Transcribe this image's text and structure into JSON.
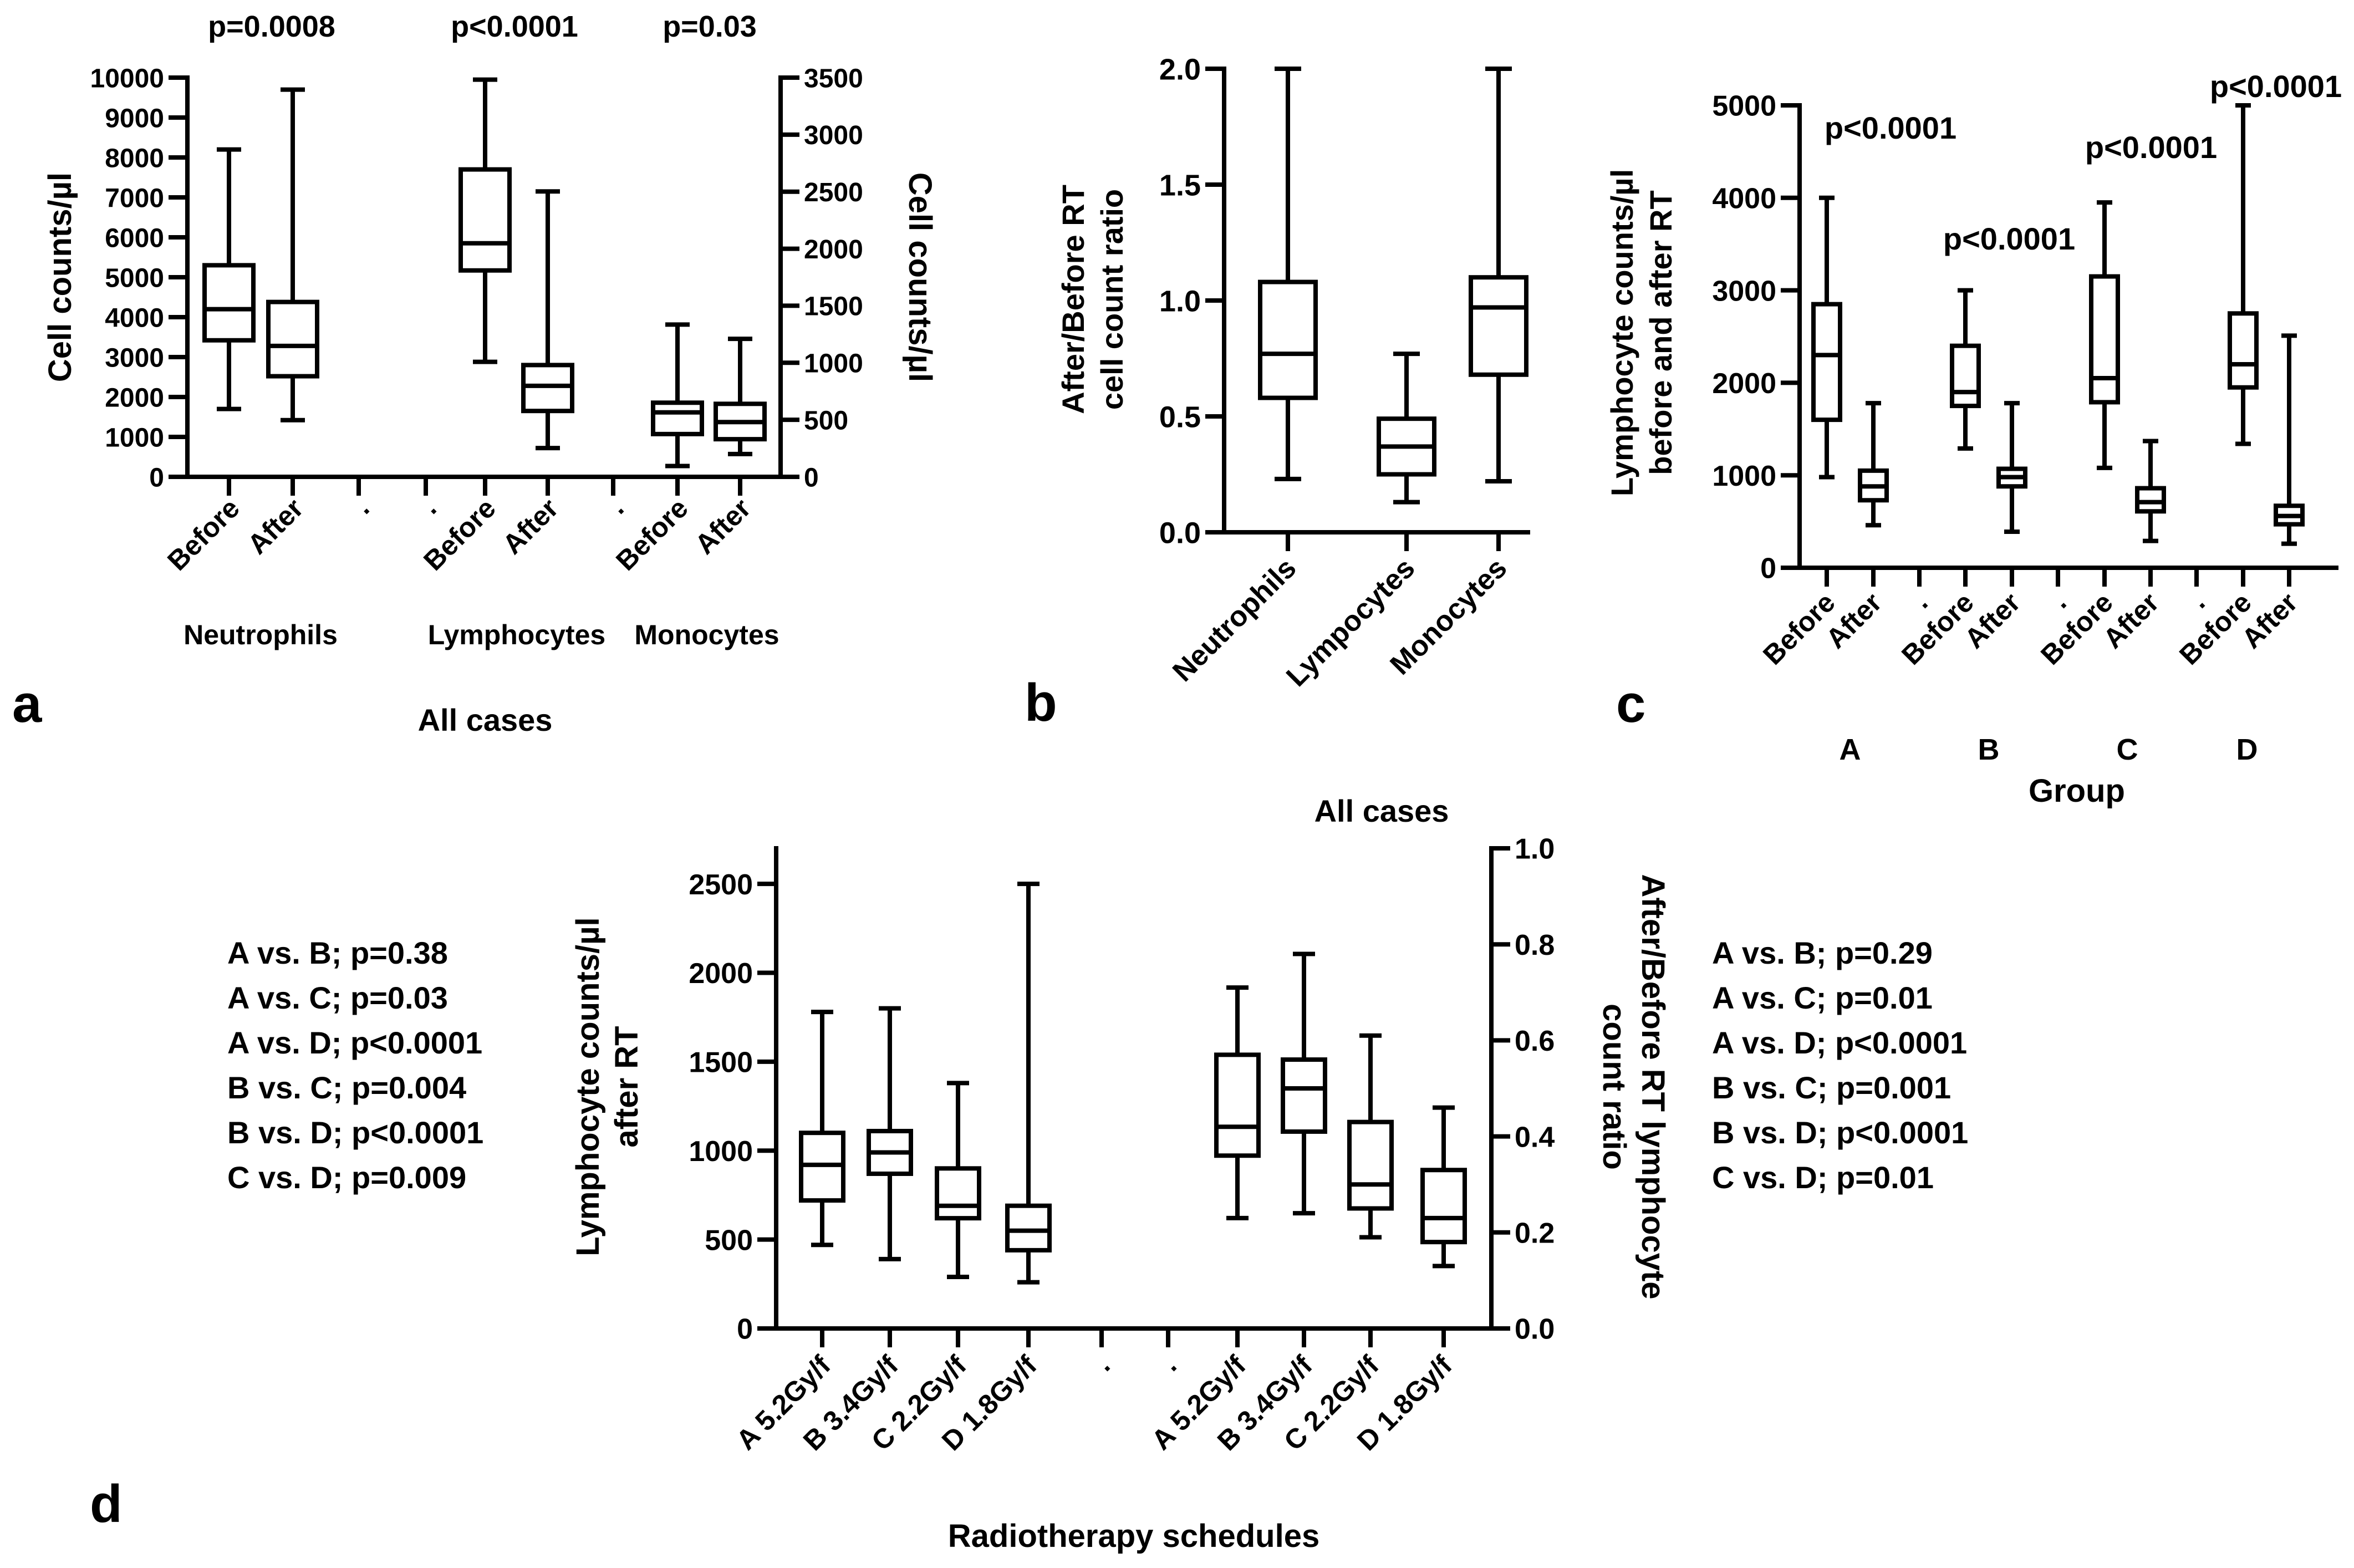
{
  "chart_data": [
    {
      "id": "a",
      "type": "box",
      "panel_label": "a",
      "title": "",
      "xlabel": "All cases",
      "ylabel": "Cell counts/µl",
      "ylabel_right": "Cell counts/µl",
      "ylim": [
        0,
        10000
      ],
      "ylim_right": [
        0,
        3500
      ],
      "yticks": [
        0,
        1000,
        2000,
        3000,
        4000,
        5000,
        6000,
        7000,
        8000,
        9000,
        10000
      ],
      "yticks_right": [
        0,
        500,
        1000,
        1500,
        2000,
        2500,
        3000,
        3500
      ],
      "tick_labels": [
        "Before",
        "After",
        ".",
        ".",
        "Before",
        "After",
        ".",
        "Before",
        "After"
      ],
      "group_labels": [
        "Neutrophils",
        "Lymphocytes",
        "Monocytes"
      ],
      "p_values": [
        "p=0.0008",
        "p<0.0001",
        "p=0.03"
      ],
      "boxes": [
        {
          "name": "Neutrophils Before",
          "min": 1700,
          "q1": 3420,
          "median": 4200,
          "q3": 5300,
          "max": 8200
        },
        {
          "name": "Neutrophils After",
          "min": 1420,
          "q1": 2520,
          "median": 3280,
          "q3": 4380,
          "max": 9700
        },
        {
          "name": "Lymphocytes Before",
          "min": 2880,
          "q1": 5170,
          "median": 5850,
          "q3": 7700,
          "max": 9950
        },
        {
          "name": "Lymphocytes After",
          "min": 720,
          "q1": 1650,
          "median": 2280,
          "q3": 2800,
          "max": 7150
        },
        {
          "name": "Monocytes Before",
          "min": 95,
          "q1": 375,
          "median": 565,
          "q3": 650,
          "max": 1335
        },
        {
          "name": "Monocytes After",
          "min": 200,
          "q1": 330,
          "median": 480,
          "q3": 640,
          "max": 1210
        }
      ]
    },
    {
      "id": "b",
      "type": "box",
      "panel_label": "b",
      "title": "",
      "xlabel": "All cases",
      "ylabel": "After/Before RT cell count ratio",
      "ylabel_lines": [
        "After/Before RT",
        "cell count ratio"
      ],
      "ylim": [
        0,
        2.0
      ],
      "yticks": [
        "0.0",
        "0.5",
        "1.0",
        "1.5",
        "2.0"
      ],
      "tick_labels": [
        "Neutrophils",
        "Lympocytes",
        "Monocytes"
      ],
      "boxes": [
        {
          "name": "Neutrophils",
          "min": 0.23,
          "q1": 0.58,
          "median": 0.77,
          "q3": 1.08,
          "max": 2.0
        },
        {
          "name": "Lympocytes",
          "min": 0.13,
          "q1": 0.25,
          "median": 0.37,
          "q3": 0.49,
          "max": 0.77
        },
        {
          "name": "Monocytes",
          "min": 0.22,
          "q1": 0.68,
          "median": 0.97,
          "q3": 1.1,
          "max": 2.0
        }
      ]
    },
    {
      "id": "c",
      "type": "box",
      "panel_label": "c",
      "title": "",
      "xlabel": "Group",
      "ylabel": "Lymphocyte counts/µl before and after RT",
      "ylabel_lines": [
        "Lymphocyte counts/µl",
        "before and after RT"
      ],
      "ylim": [
        0,
        5000
      ],
      "yticks": [
        0,
        1000,
        2000,
        3000,
        4000,
        5000
      ],
      "tick_labels": [
        "Before",
        "After",
        ".",
        "Before",
        "After",
        ".",
        "Before",
        "After",
        ".",
        "Before",
        "After"
      ],
      "group_labels": [
        "A",
        "B",
        "C",
        "D"
      ],
      "p_values": [
        "p<0.0001",
        "p<0.0001",
        "p<0.0001",
        "p<0.0001"
      ],
      "boxes": [
        {
          "name": "A Before",
          "min": 980,
          "q1": 1600,
          "median": 2300,
          "q3": 2850,
          "max": 4000
        },
        {
          "name": "A After",
          "min": 460,
          "q1": 730,
          "median": 880,
          "q3": 1050,
          "max": 1780
        },
        {
          "name": "B Before",
          "min": 1290,
          "q1": 1750,
          "median": 1900,
          "q3": 2400,
          "max": 3000
        },
        {
          "name": "B After",
          "min": 390,
          "q1": 880,
          "median": 980,
          "q3": 1070,
          "max": 1780
        },
        {
          "name": "C Before",
          "min": 1080,
          "q1": 1790,
          "median": 2050,
          "q3": 3150,
          "max": 3950
        },
        {
          "name": "C After",
          "min": 290,
          "q1": 610,
          "median": 710,
          "q3": 860,
          "max": 1370
        },
        {
          "name": "D Before",
          "min": 1340,
          "q1": 1950,
          "median": 2200,
          "q3": 2750,
          "max": 5000
        },
        {
          "name": "D After",
          "min": 260,
          "q1": 470,
          "median": 560,
          "q3": 670,
          "max": 2510
        }
      ]
    },
    {
      "id": "d",
      "type": "box",
      "panel_label": "d",
      "title": "All cases",
      "xlabel": "Radiotherapy schedules",
      "ylabel": "Lymphocyte counts/µl after RT",
      "ylabel_lines": [
        "Lymphocyte counts/µl",
        "after RT"
      ],
      "ylabel_right": "After/Before RT lymphocyte count ratio",
      "ylabel_right_lines": [
        "After/Before RT lymphocyte",
        "count ratio"
      ],
      "ylim": [
        0,
        2700
      ],
      "ylim_right": [
        0,
        1.0
      ],
      "yticks": [
        0,
        500,
        1000,
        1500,
        2000,
        2500
      ],
      "yticks_right": [
        "0.0",
        "0.2",
        "0.4",
        "0.6",
        "0.8",
        "1.0"
      ],
      "tick_labels": [
        "A 5.2Gy/f",
        "B 3.4Gy/f",
        "C 2.2Gy/f",
        "D 1.8Gy/f",
        ".",
        ".",
        "A 5.2Gy/f",
        "B 3.4Gy/f",
        "C 2.2Gy/f",
        "D 1.8Gy/f"
      ],
      "boxes": [
        {
          "name": "A 5.2Gy/f counts",
          "axis": "left",
          "min": 470,
          "q1": 720,
          "median": 920,
          "q3": 1100,
          "max": 1780
        },
        {
          "name": "B 3.4Gy/f counts",
          "axis": "left",
          "min": 390,
          "q1": 870,
          "median": 990,
          "q3": 1110,
          "max": 1800
        },
        {
          "name": "C 2.2Gy/f counts",
          "axis": "left",
          "min": 290,
          "q1": 620,
          "median": 690,
          "q3": 900,
          "max": 1380
        },
        {
          "name": "D 1.8Gy/f counts",
          "axis": "left",
          "min": 260,
          "q1": 440,
          "median": 550,
          "q3": 690,
          "max": 2500
        },
        {
          "name": "A 5.2Gy/f ratio",
          "axis": "right",
          "min": 0.23,
          "q1": 0.36,
          "median": 0.42,
          "q3": 0.57,
          "max": 0.71
        },
        {
          "name": "B 3.4Gy/f ratio",
          "axis": "right",
          "min": 0.24,
          "q1": 0.41,
          "median": 0.5,
          "q3": 0.56,
          "max": 0.78
        },
        {
          "name": "C 2.2Gy/f ratio",
          "axis": "right",
          "min": 0.19,
          "q1": 0.25,
          "median": 0.3,
          "q3": 0.43,
          "max": 0.61
        },
        {
          "name": "D 1.8Gy/f ratio",
          "axis": "right",
          "min": 0.13,
          "q1": 0.18,
          "median": 0.23,
          "q3": 0.33,
          "max": 0.46
        }
      ],
      "comparisons_left": [
        "A vs. B; p=0.38",
        "A vs. C; p=0.03",
        "A vs. D; p<0.0001",
        "B vs. C; p=0.004",
        "B vs. D; p<0.0001",
        "C vs. D; p=0.009"
      ],
      "comparisons_right": [
        "A vs. B; p=0.29",
        "A vs. C; p=0.01",
        "A vs. D; p<0.0001",
        "B vs. C; p=0.001",
        "B vs. D; p<0.0001",
        "C vs. D; p=0.01"
      ]
    }
  ]
}
